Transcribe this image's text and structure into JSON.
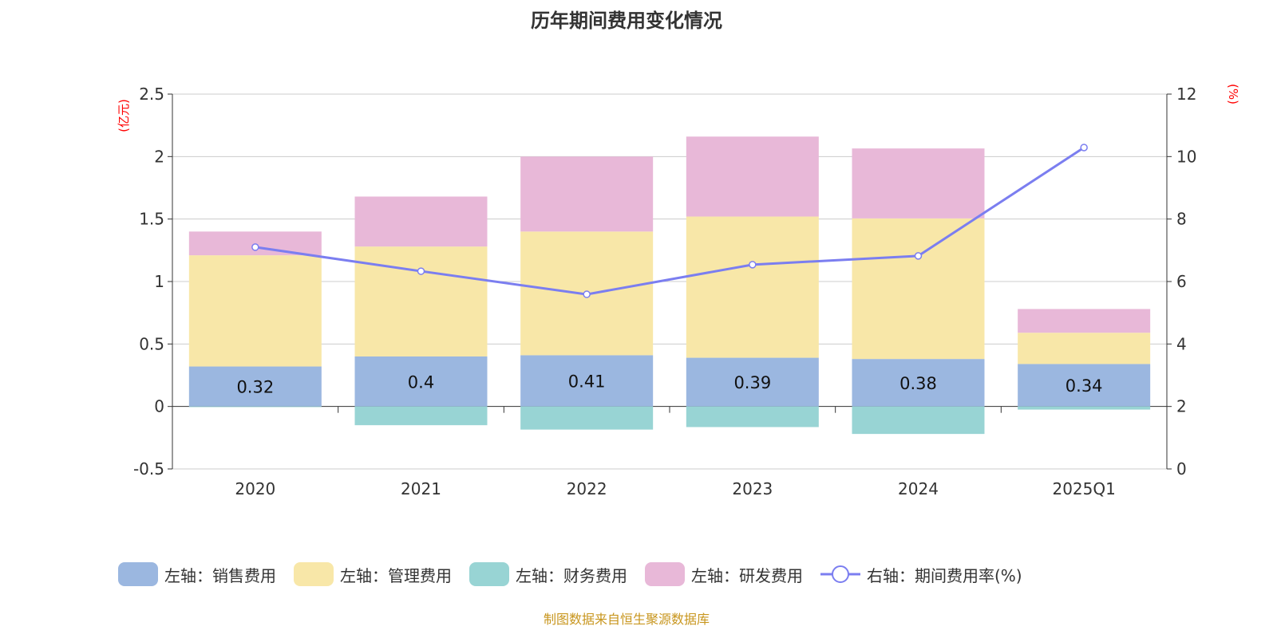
{
  "title": "历年期间费用变化情况",
  "source": "制图数据来自恒生聚源数据库",
  "chart_data": {
    "type": "bar",
    "stacked": true,
    "categories": [
      "2020",
      "2021",
      "2022",
      "2023",
      "2024",
      "2025Q1"
    ],
    "left_axis": {
      "label": "(亿元)",
      "ylim": [
        -0.5,
        2.5
      ],
      "ticks": [
        "-0.5",
        "0",
        "0.5",
        "1",
        "1.5",
        "2",
        "2.5"
      ],
      "tick_values": [
        -0.5,
        0,
        0.5,
        1,
        1.5,
        2,
        2.5
      ]
    },
    "right_axis": {
      "label": "(%)",
      "ylim": [
        0,
        12
      ],
      "ticks": [
        "0",
        "2",
        "4",
        "6",
        "8",
        "10",
        "12"
      ],
      "tick_values": [
        0,
        2,
        4,
        6,
        8,
        10,
        12
      ]
    },
    "grid": true,
    "legend_position": "bottom",
    "series": [
      {
        "name": "左轴：销售费用",
        "axis": "left",
        "type": "bar",
        "color": "#9bb7e0",
        "values": [
          0.32,
          0.4,
          0.41,
          0.39,
          0.38,
          0.34
        ],
        "labels": [
          "0.32",
          "0.4",
          "0.41",
          "0.39",
          "0.38",
          "0.34"
        ]
      },
      {
        "name": "左轴：管理费用",
        "axis": "left",
        "type": "bar",
        "color": "#f8e7a8",
        "values": [
          0.89,
          0.88,
          0.99,
          1.13,
          1.125,
          0.25
        ]
      },
      {
        "name": "左轴：财务费用",
        "axis": "left",
        "type": "bar",
        "color": "#98d4d4",
        "values": [
          -0.005,
          -0.15,
          -0.185,
          -0.165,
          -0.22,
          -0.025
        ]
      },
      {
        "name": "左轴：研发费用",
        "axis": "left",
        "type": "bar",
        "color": "#e8b8d8",
        "values": [
          0.19,
          0.4,
          0.6,
          0.64,
          0.56,
          0.19
        ]
      },
      {
        "name": "右轴：期间费用率(%)",
        "axis": "right",
        "type": "line",
        "color": "#7b7ef0",
        "values": [
          7.1,
          6.33,
          5.59,
          6.54,
          6.82,
          10.29
        ]
      }
    ]
  }
}
